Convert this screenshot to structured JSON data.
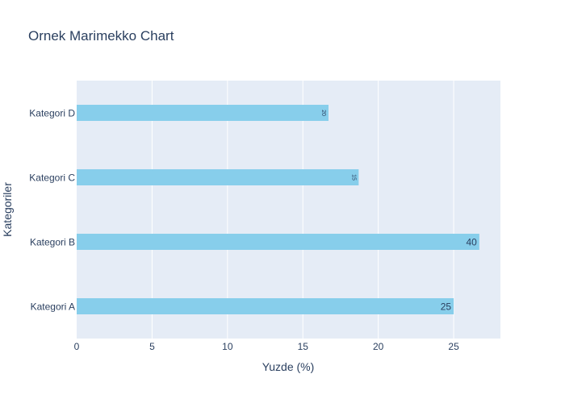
{
  "chart_data": {
    "type": "bar",
    "orientation": "horizontal",
    "title": "Ornek Marimekko Chart",
    "xlabel": "Yuzde (%)",
    "ylabel": "Kategoriler",
    "categories": [
      "Kategori A",
      "Kategori B",
      "Kategori C",
      "Kategori D"
    ],
    "values": [
      25,
      26.7,
      18.7,
      16.7
    ],
    "labels": [
      "25",
      "40",
      "15",
      "20"
    ],
    "xlim": [
      0,
      28.1
    ],
    "xticks": [
      0,
      5,
      10,
      15,
      20,
      25
    ],
    "grid": true,
    "legend": "none",
    "colors": {
      "bar": "#87ceeb",
      "plot_bg": "#e5ecf6",
      "grid": "#ffffff",
      "text": "#2a3f5f"
    }
  }
}
